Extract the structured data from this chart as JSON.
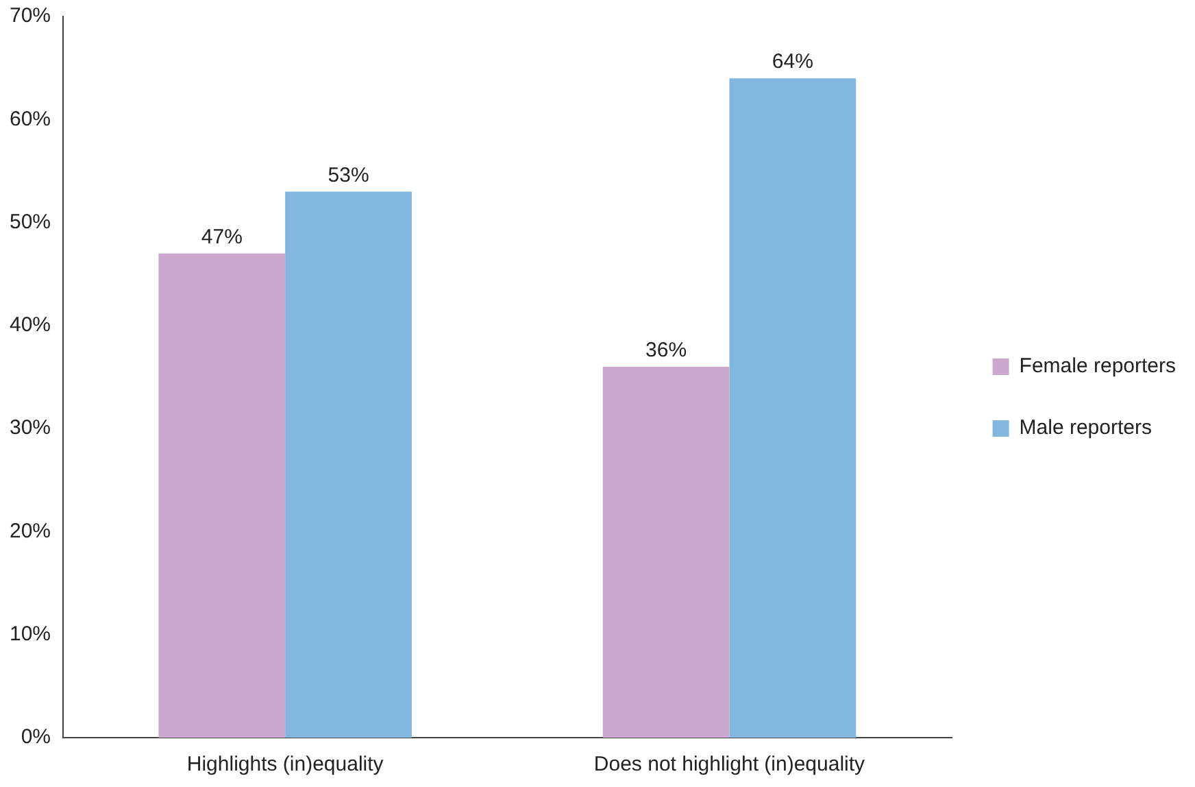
{
  "chart_data": {
    "type": "bar",
    "categories": [
      "Highlights (in)equality",
      "Does not highlight (in)equality"
    ],
    "series": [
      {
        "name": "Female reporters",
        "color": "#cca8cf",
        "values": [
          47,
          36
        ]
      },
      {
        "name": "Male reporters",
        "color": "#82b7df",
        "values": [
          53,
          64
        ]
      }
    ],
    "ylim": [
      0,
      70
    ],
    "yticks": [
      {
        "value": 0,
        "label": "0%"
      },
      {
        "value": 10,
        "label": "10%"
      },
      {
        "value": 20,
        "label": "20%"
      },
      {
        "value": 30,
        "label": "30%"
      },
      {
        "value": 40,
        "label": "40%"
      },
      {
        "value": 50,
        "label": "50%"
      },
      {
        "value": 60,
        "label": "60%"
      },
      {
        "value": 70,
        "label": "70%"
      }
    ],
    "grid": false,
    "legend": "right",
    "value_labels": [
      [
        "47%",
        "36%"
      ],
      [
        "53%",
        "64%"
      ]
    ]
  }
}
